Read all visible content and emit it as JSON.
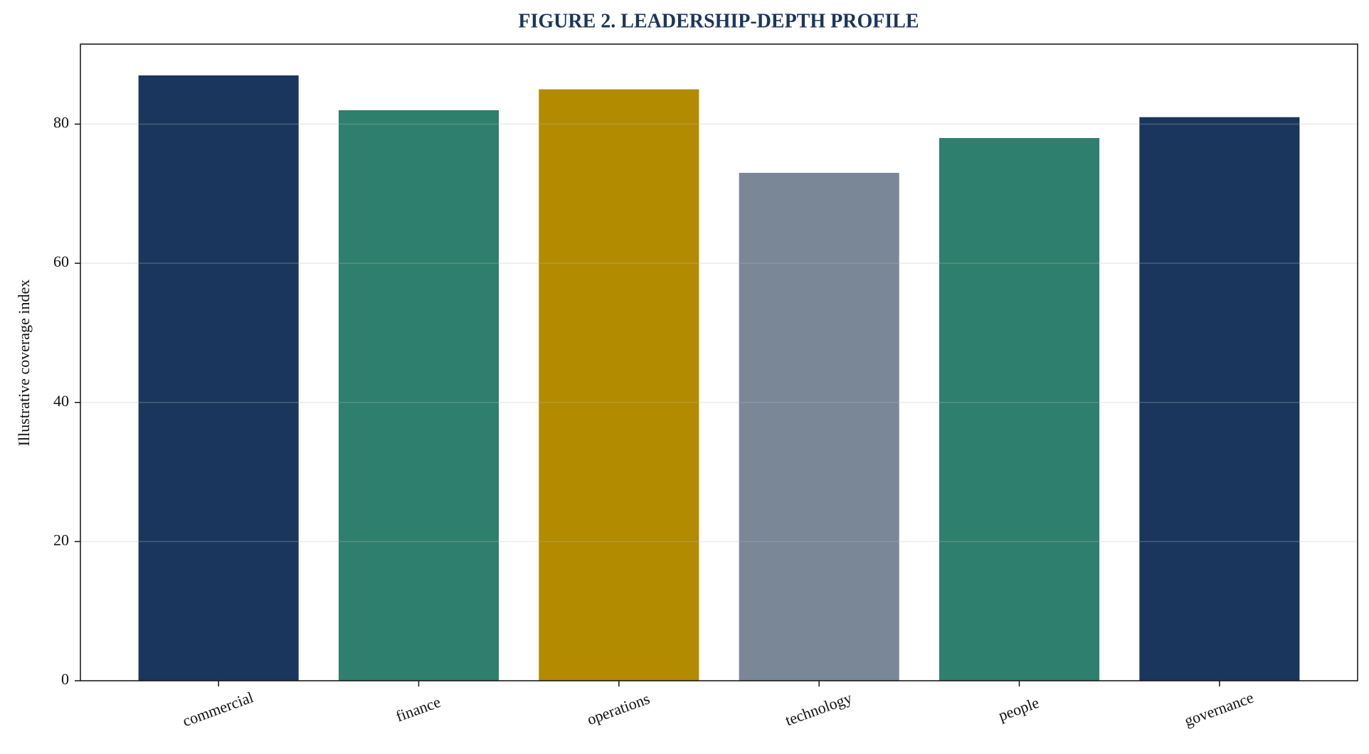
{
  "chart_data": {
    "type": "bar",
    "title": "FIGURE 2. LEADERSHIP-DEPTH PROFILE",
    "ylabel": "Illustrative coverage index",
    "categories": [
      "commercial",
      "finance",
      "operations",
      "technology",
      "people",
      "governance"
    ],
    "values": [
      87,
      82,
      85,
      73,
      78,
      81
    ],
    "colors": [
      "#1b365d",
      "#2e7f6e",
      "#b38b00",
      "#7a8796",
      "#2e7f6e",
      "#1b365d"
    ],
    "ylim": [
      0,
      91.5
    ],
    "yticks": [
      0,
      20,
      40,
      60,
      80
    ],
    "grid": true
  }
}
